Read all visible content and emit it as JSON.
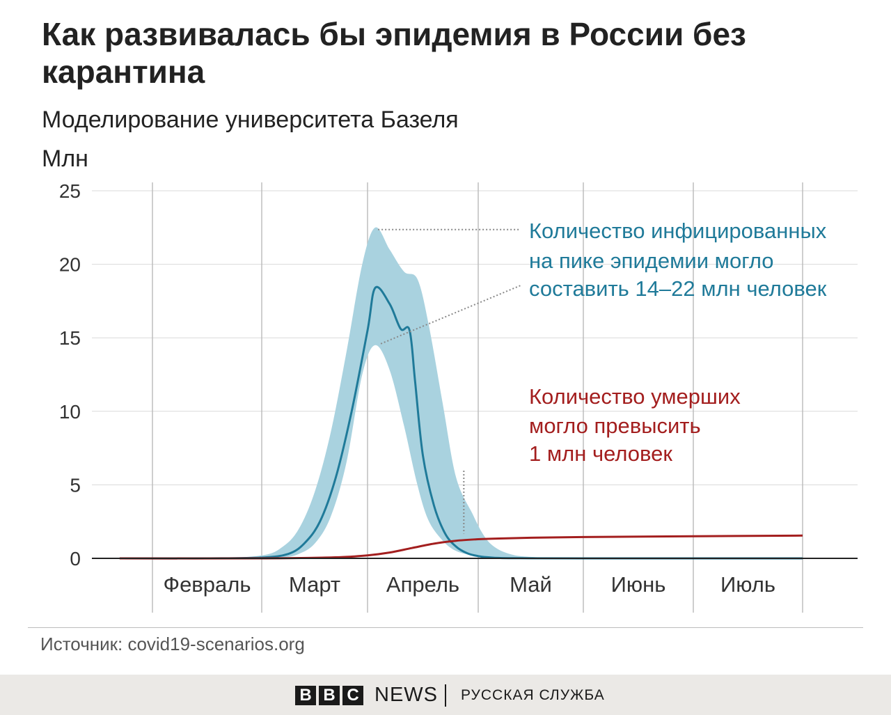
{
  "header": {
    "title": "Как развивалась бы эпидемия в России без карантина",
    "subtitle": "Моделирование университета Базеля",
    "unit": "Млн"
  },
  "source": "Источник: covid19-scenarios.org",
  "footer": {
    "logo_letters": [
      "B",
      "B",
      "C"
    ],
    "news": "NEWS",
    "service": "РУССКАЯ СЛУЖБА"
  },
  "colors": {
    "infected_line": "#1f7a99",
    "infected_band": "#a9d2df",
    "deaths_line": "#a31e1e",
    "grid": "#d9d9d9",
    "month_divider": "#bdbdbd"
  },
  "chart_data": {
    "type": "area",
    "ylabel": "Млн",
    "ylim": [
      0,
      25
    ],
    "yticks": [
      "0",
      "5",
      "10",
      "15",
      "20",
      "25"
    ],
    "x_unit": "months (2020), fractional",
    "xlim": [
      0.7,
      7.0
    ],
    "month_labels": [
      "Февраль",
      "Март",
      "Апрель",
      "Май",
      "Июнь",
      "Июль"
    ],
    "month_boundaries": [
      1,
      2,
      3,
      4,
      5,
      6,
      7
    ],
    "series": [
      {
        "name": "infected_median",
        "x": [
          0.7,
          1.5,
          2.0,
          2.25,
          2.4,
          2.55,
          2.7,
          2.85,
          3.0,
          3.07,
          3.2,
          3.3,
          3.38,
          3.43,
          3.5,
          3.6,
          3.7,
          3.8,
          3.9,
          4.0,
          4.1,
          4.2,
          4.4,
          5.0,
          6.0,
          7.0
        ],
        "y": [
          0,
          0,
          0.05,
          0.3,
          1.0,
          2.5,
          5.5,
          10.0,
          15.5,
          18.4,
          17.3,
          15.6,
          15.5,
          12.0,
          7.0,
          3.6,
          1.7,
          0.8,
          0.35,
          0.15,
          0.07,
          0.03,
          0.01,
          0,
          0,
          0
        ]
      },
      {
        "name": "infected_band",
        "x": [
          0.7,
          1.5,
          2.0,
          2.2,
          2.35,
          2.5,
          2.65,
          2.8,
          2.95,
          3.07,
          3.2,
          3.33,
          3.45,
          3.55,
          3.68,
          3.8,
          3.95,
          4.05,
          4.15,
          4.3,
          4.5,
          5.0,
          7.0
        ],
        "low": [
          0,
          0,
          0,
          0.05,
          0.3,
          1.0,
          2.8,
          6.5,
          12.5,
          14.5,
          12.8,
          9.0,
          5.0,
          2.6,
          1.2,
          0.5,
          0.2,
          0.08,
          0.03,
          0.01,
          0,
          0,
          0
        ],
        "high": [
          0,
          0,
          0.2,
          0.8,
          2.0,
          4.5,
          8.5,
          14.0,
          20.0,
          22.5,
          21.0,
          19.5,
          19.0,
          16.0,
          10.5,
          5.5,
          3.0,
          1.6,
          0.8,
          0.3,
          0.1,
          0,
          0
        ]
      },
      {
        "name": "deaths",
        "x": [
          0.7,
          2.0,
          2.6,
          2.8,
          3.0,
          3.2,
          3.4,
          3.6,
          3.8,
          4.0,
          4.2,
          4.5,
          5.0,
          6.0,
          7.0
        ],
        "y": [
          0,
          0,
          0.05,
          0.1,
          0.2,
          0.4,
          0.7,
          1.0,
          1.2,
          1.3,
          1.35,
          1.4,
          1.45,
          1.5,
          1.55
        ]
      }
    ],
    "annotations": [
      {
        "lines": [
          "Количество инфицированных",
          "на пике эпидемии могло",
          "составить 14–22 млн человек"
        ],
        "color": "#1f7a99",
        "targets": [
          {
            "x": 3.07,
            "y": 22.5
          },
          {
            "x": 3.12,
            "y": 14.5
          }
        ]
      },
      {
        "lines": [
          "Количество умерших",
          "могло превысить",
          "1 млн человек"
        ],
        "color": "#a31e1e",
        "targets": [
          {
            "x": 3.87,
            "y": 1.3
          }
        ]
      }
    ]
  }
}
